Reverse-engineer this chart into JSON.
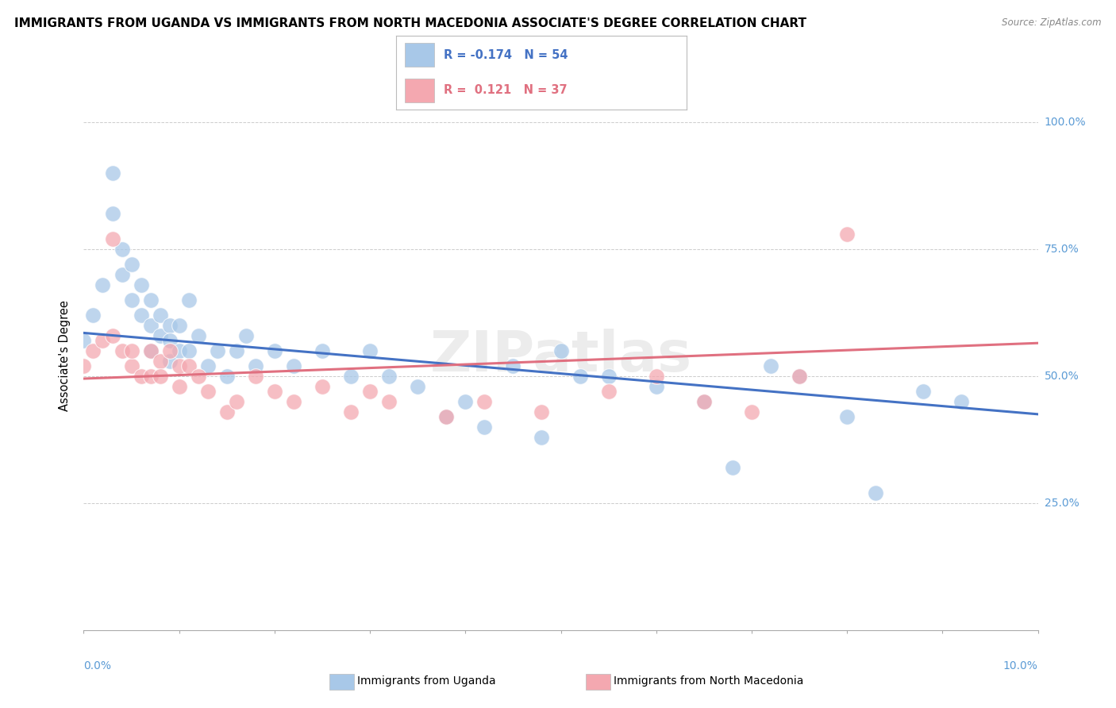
{
  "title": "IMMIGRANTS FROM UGANDA VS IMMIGRANTS FROM NORTH MACEDONIA ASSOCIATE'S DEGREE CORRELATION CHART",
  "source": "Source: ZipAtlas.com",
  "ylabel": "Associate's Degree",
  "xlim": [
    0.0,
    0.1
  ],
  "ylim": [
    0.0,
    1.08
  ],
  "yticks": [
    0.0,
    0.25,
    0.5,
    0.75,
    1.0
  ],
  "ytick_labels": [
    "",
    "25.0%",
    "50.0%",
    "75.0%",
    "100.0%"
  ],
  "color_uganda": "#a8c8e8",
  "color_macedonia": "#f4a8b0",
  "color_uganda_line": "#4472c4",
  "color_macedonia_line": "#e07080",
  "uganda_scatter_x": [
    0.0,
    0.001,
    0.002,
    0.003,
    0.003,
    0.004,
    0.004,
    0.005,
    0.005,
    0.006,
    0.006,
    0.007,
    0.007,
    0.007,
    0.008,
    0.008,
    0.009,
    0.009,
    0.009,
    0.01,
    0.01,
    0.011,
    0.011,
    0.012,
    0.013,
    0.014,
    0.015,
    0.016,
    0.017,
    0.018,
    0.02,
    0.022,
    0.025,
    0.028,
    0.03,
    0.032,
    0.035,
    0.038,
    0.042,
    0.048,
    0.052,
    0.06,
    0.065,
    0.068,
    0.072,
    0.075,
    0.08,
    0.083,
    0.088,
    0.092,
    0.05,
    0.045,
    0.04,
    0.055
  ],
  "uganda_scatter_y": [
    0.57,
    0.62,
    0.68,
    0.82,
    0.9,
    0.7,
    0.75,
    0.65,
    0.72,
    0.62,
    0.68,
    0.65,
    0.6,
    0.55,
    0.62,
    0.58,
    0.6,
    0.57,
    0.53,
    0.6,
    0.55,
    0.65,
    0.55,
    0.58,
    0.52,
    0.55,
    0.5,
    0.55,
    0.58,
    0.52,
    0.55,
    0.52,
    0.55,
    0.5,
    0.55,
    0.5,
    0.48,
    0.42,
    0.4,
    0.38,
    0.5,
    0.48,
    0.45,
    0.32,
    0.52,
    0.5,
    0.42,
    0.27,
    0.47,
    0.45,
    0.55,
    0.52,
    0.45,
    0.5
  ],
  "macedonia_scatter_x": [
    0.0,
    0.001,
    0.002,
    0.003,
    0.003,
    0.004,
    0.005,
    0.005,
    0.006,
    0.007,
    0.007,
    0.008,
    0.008,
    0.009,
    0.01,
    0.01,
    0.011,
    0.012,
    0.013,
    0.015,
    0.016,
    0.018,
    0.02,
    0.022,
    0.025,
    0.028,
    0.03,
    0.032,
    0.038,
    0.042,
    0.048,
    0.055,
    0.06,
    0.065,
    0.07,
    0.075,
    0.08
  ],
  "macedonia_scatter_y": [
    0.52,
    0.55,
    0.57,
    0.58,
    0.77,
    0.55,
    0.52,
    0.55,
    0.5,
    0.55,
    0.5,
    0.53,
    0.5,
    0.55,
    0.52,
    0.48,
    0.52,
    0.5,
    0.47,
    0.43,
    0.45,
    0.5,
    0.47,
    0.45,
    0.48,
    0.43,
    0.47,
    0.45,
    0.42,
    0.45,
    0.43,
    0.47,
    0.5,
    0.45,
    0.43,
    0.5,
    0.78
  ],
  "uganda_line_x": [
    0.0,
    0.1
  ],
  "uganda_line_y": [
    0.585,
    0.425
  ],
  "macedonia_line_x": [
    0.0,
    0.1
  ],
  "macedonia_line_y": [
    0.495,
    0.565
  ],
  "watermark": "ZIPatlas",
  "background_color": "#ffffff",
  "grid_color": "#cccccc",
  "bottom_legend": [
    {
      "label": "Immigrants from Uganda",
      "color": "#a8c8e8"
    },
    {
      "label": "Immigrants from North Macedonia",
      "color": "#f4a8b0"
    }
  ],
  "top_legend": [
    {
      "text": "R = -0.174   N = 54",
      "color": "#4472c4",
      "patch_color": "#a8c8e8"
    },
    {
      "text": "R =  0.121   N = 37",
      "color": "#e07080",
      "patch_color": "#f4a8b0"
    }
  ]
}
